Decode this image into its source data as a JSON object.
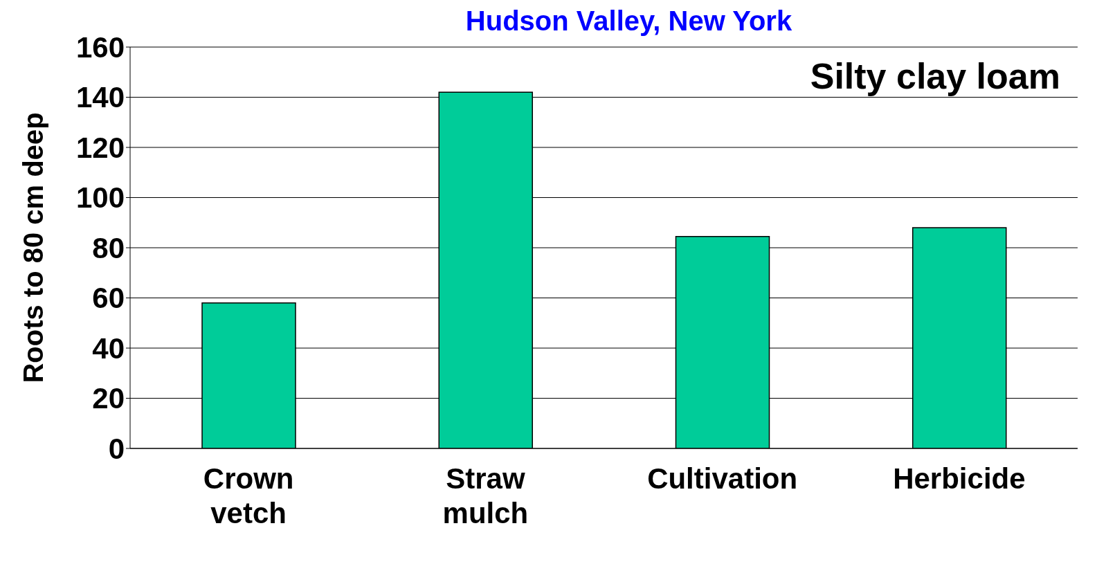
{
  "chart_data": {
    "type": "bar",
    "title": "Hudson Valley, New York",
    "ylabel": "Roots to 80 cm deep",
    "categories": [
      "Crown vetch",
      "Straw mulch",
      "Cultivation",
      "Herbicide"
    ],
    "values": [
      58,
      142,
      84.5,
      88
    ],
    "color": "#00cc99",
    "ylim": [
      0,
      160
    ],
    "yticks": [
      0,
      20,
      40,
      60,
      80,
      100,
      120,
      140,
      160
    ],
    "grid": "y",
    "annotations": [
      "Silty clay loam"
    ]
  }
}
